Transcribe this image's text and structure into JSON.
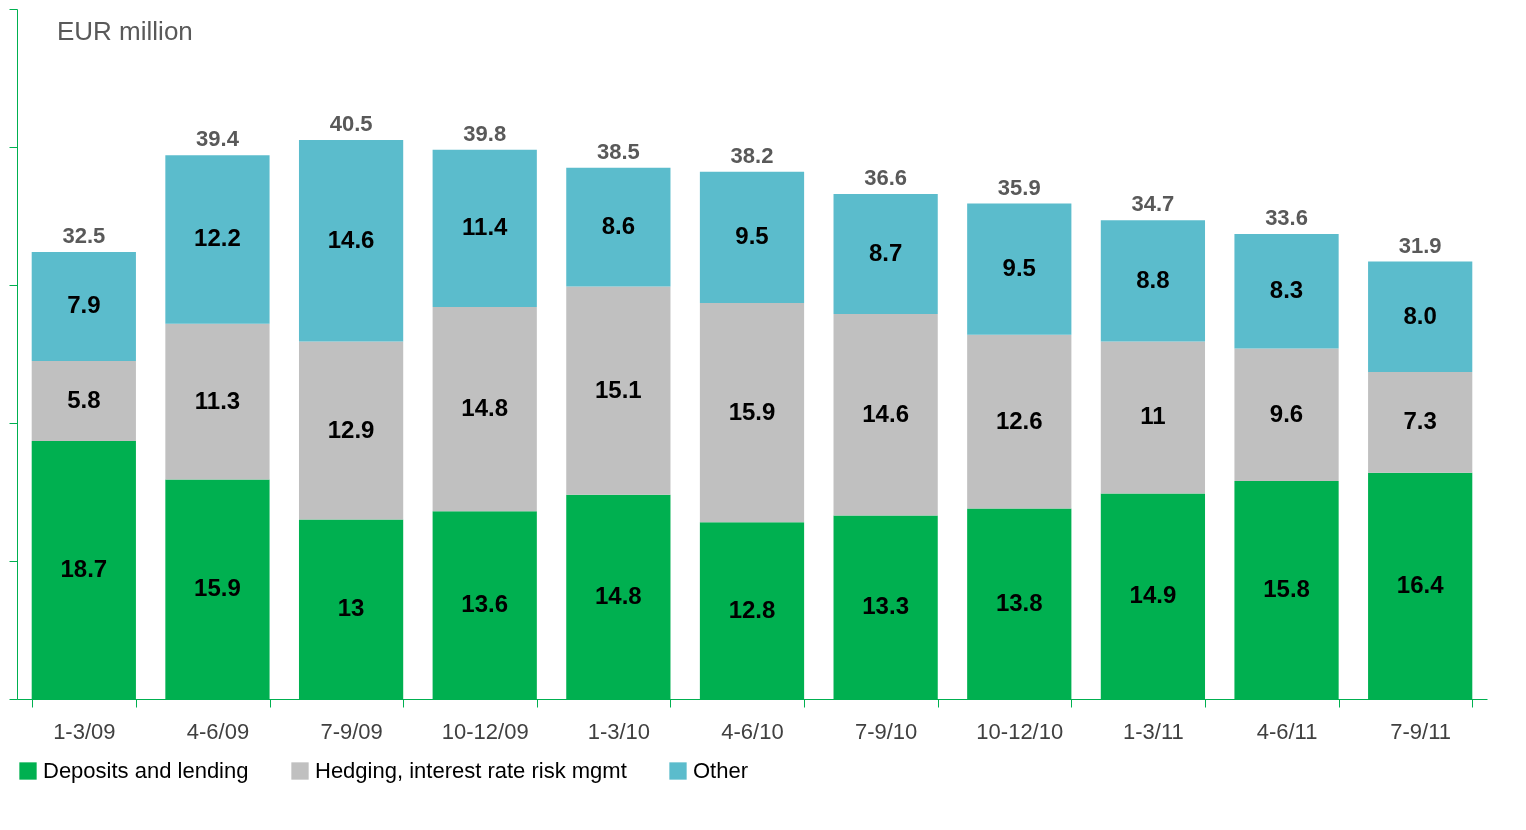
{
  "chart_data": {
    "type": "bar",
    "stacked": true,
    "ylabel": "EUR million",
    "categories": [
      "1-3/09",
      "4-6/09",
      "7-9/09",
      "10-12/09",
      "1-3/10",
      "4-6/10",
      "7-9/10",
      "10-12/10",
      "1-3/11",
      "4-6/11",
      "7-9/11"
    ],
    "series": [
      {
        "name": "Deposits and lending",
        "color": "#00b050",
        "values": [
          18.7,
          15.9,
          13,
          13.6,
          14.8,
          12.8,
          13.3,
          13.8,
          14.9,
          15.8,
          16.4
        ],
        "value_labels": [
          "18.7",
          "15.9",
          "13",
          "13.6",
          "14.8",
          "12.8",
          "13.3",
          "13.8",
          "14.9",
          "15.8",
          "16.4"
        ]
      },
      {
        "name": "Hedging, interest rate risk mgmt",
        "color": "#c0c0c0",
        "values": [
          5.8,
          11.3,
          12.9,
          14.8,
          15.1,
          15.9,
          14.6,
          12.6,
          11,
          9.6,
          7.3
        ],
        "value_labels": [
          "5.8",
          "11.3",
          "12.9",
          "14.8",
          "15.1",
          "15.9",
          "14.6",
          "12.6",
          "11",
          "9.6",
          "7.3"
        ]
      },
      {
        "name": "Other",
        "color": "#5bbccc",
        "values": [
          7.9,
          12.2,
          14.6,
          11.4,
          8.6,
          9.5,
          8.7,
          9.5,
          8.8,
          8.3,
          8.0
        ],
        "value_labels": [
          "7.9",
          "12.2",
          "14.6",
          "11.4",
          "8.6",
          "9.5",
          "8.7",
          "9.5",
          "8.8",
          "8.3",
          "8.0"
        ]
      }
    ],
    "totals": [
      "32.5",
      "39.4",
      "40.5",
      "39.8",
      "38.5",
      "38.2",
      "36.6",
      "35.9",
      "34.7",
      "33.6",
      "31.9"
    ],
    "ylim": [
      0,
      50
    ],
    "yticks": [
      {
        "value": 0,
        "label": null
      },
      {
        "value": 10,
        "label": null
      },
      {
        "value": 20,
        "label": null
      },
      {
        "value": 30,
        "label": null
      },
      {
        "value": 40,
        "label": null
      },
      {
        "value": 50,
        "label": null
      }
    ],
    "tick_labels": "x",
    "grid": false,
    "legend": "bottom"
  }
}
